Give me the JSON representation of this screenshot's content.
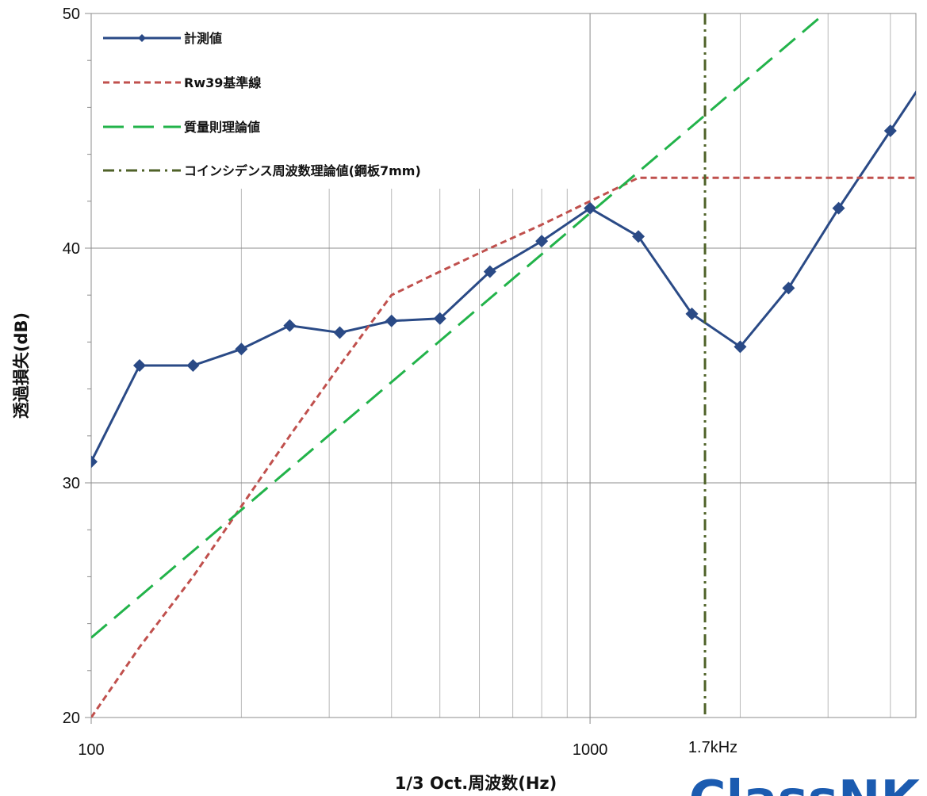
{
  "chart_data": {
    "type": "line",
    "x_scale": "log",
    "xlabel": "1/3 Oct.周波数(Hz)",
    "ylabel": "透過損失(dB)",
    "xlim": [
      100,
      4500
    ],
    "ylim": [
      20,
      50
    ],
    "x_ticks": [
      100,
      1000
    ],
    "x_tick_labels": [
      "100",
      "1000"
    ],
    "y_ticks": [
      20,
      30,
      40,
      50
    ],
    "y_tick_labels": [
      "20",
      "30",
      "40",
      "50"
    ],
    "grid": true,
    "legend_position": "top-left",
    "series": [
      {
        "name": "計測値",
        "style": "solid-diamond",
        "color": "#2a4a86",
        "points": [
          [
            100,
            30.9
          ],
          [
            125,
            35.0
          ],
          [
            160,
            35.0
          ],
          [
            200,
            35.7
          ],
          [
            250,
            36.7
          ],
          [
            315,
            36.4
          ],
          [
            400,
            36.9
          ],
          [
            500,
            37.0
          ],
          [
            630,
            39.0
          ],
          [
            800,
            40.3
          ],
          [
            1000,
            41.7
          ],
          [
            1250,
            40.5
          ],
          [
            1600,
            37.2
          ],
          [
            2000,
            35.8
          ],
          [
            2500,
            38.3
          ],
          [
            3150,
            41.7
          ],
          [
            4000,
            45.0
          ],
          [
            5000,
            48.1
          ]
        ]
      },
      {
        "name": "Rw39基準線",
        "style": "short-dash",
        "color": "#c0504d",
        "points": [
          [
            100,
            20
          ],
          [
            125,
            23
          ],
          [
            160,
            26
          ],
          [
            200,
            29
          ],
          [
            250,
            32
          ],
          [
            315,
            35
          ],
          [
            400,
            38
          ],
          [
            500,
            39
          ],
          [
            630,
            40
          ],
          [
            800,
            41
          ],
          [
            1000,
            42
          ],
          [
            1250,
            43
          ],
          [
            1600,
            43
          ],
          [
            2000,
            43
          ],
          [
            2500,
            43
          ],
          [
            3150,
            43
          ],
          [
            4000,
            43
          ],
          [
            5000,
            43
          ]
        ]
      },
      {
        "name": "質量則理論値",
        "style": "long-dash",
        "color": "#22b34a",
        "points": [
          [
            100,
            23.4
          ],
          [
            2952,
            50
          ]
        ]
      },
      {
        "name": "コインシデンス周波数理論値(鋼板7mm)",
        "style": "dash-dot",
        "color": "#4f6228",
        "vertical_x": 1700
      }
    ],
    "annotations": [
      {
        "text": "1.7kHz",
        "x": 1700
      }
    ]
  },
  "logo_text": "ClassNK"
}
